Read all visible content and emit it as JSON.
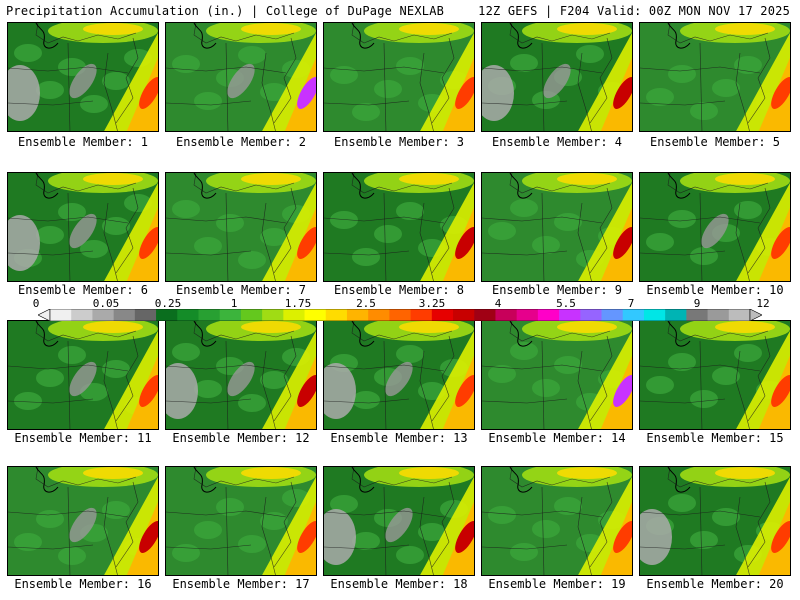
{
  "header": {
    "left": "Precipitation Accumulation (in.) | College of DuPage NEXLAB",
    "right": "12Z GEFS | F204 Valid: 00Z MON NOV 17 2025"
  },
  "caption_prefix": "Ensemble Member:",
  "members": [
    {
      "label": "Ensemble Member: 1",
      "mean_accum": 1.0,
      "west_dry": true,
      "south_dry": true,
      "max_core": 3.0
    },
    {
      "label": "Ensemble Member: 2",
      "mean_accum": 1.2,
      "west_dry": false,
      "south_dry": true,
      "max_core": 5.0
    },
    {
      "label": "Ensemble Member: 3",
      "mean_accum": 1.1,
      "west_dry": false,
      "south_dry": false,
      "max_core": 2.5
    },
    {
      "label": "Ensemble Member: 4",
      "mean_accum": 1.0,
      "west_dry": true,
      "south_dry": true,
      "max_core": 3.5
    },
    {
      "label": "Ensemble Member: 5",
      "mean_accum": 1.2,
      "west_dry": false,
      "south_dry": false,
      "max_core": 3.0
    },
    {
      "label": "Ensemble Member: 6",
      "mean_accum": 0.9,
      "west_dry": true,
      "south_dry": true,
      "max_core": 3.0
    },
    {
      "label": "Ensemble Member: 7",
      "mean_accum": 1.1,
      "west_dry": false,
      "south_dry": false,
      "max_core": 3.0
    },
    {
      "label": "Ensemble Member: 8",
      "mean_accum": 1.0,
      "west_dry": false,
      "south_dry": false,
      "max_core": 4.0
    },
    {
      "label": "Ensemble Member: 9",
      "mean_accum": 1.1,
      "west_dry": false,
      "south_dry": false,
      "max_core": 3.5
    },
    {
      "label": "Ensemble Member: 10",
      "mean_accum": 1.0,
      "west_dry": false,
      "south_dry": true,
      "max_core": 3.0
    },
    {
      "label": "Ensemble Member: 11",
      "mean_accum": 0.9,
      "west_dry": false,
      "south_dry": true,
      "max_core": 3.0
    },
    {
      "label": "Ensemble Member: 12",
      "mean_accum": 1.0,
      "west_dry": true,
      "south_dry": true,
      "max_core": 3.5
    },
    {
      "label": "Ensemble Member: 13",
      "mean_accum": 0.9,
      "west_dry": true,
      "south_dry": true,
      "max_core": 2.5
    },
    {
      "label": "Ensemble Member: 14",
      "mean_accum": 1.3,
      "west_dry": false,
      "south_dry": false,
      "max_core": 5.5
    },
    {
      "label": "Ensemble Member: 15",
      "mean_accum": 1.0,
      "west_dry": false,
      "south_dry": false,
      "max_core": 2.5
    },
    {
      "label": "Ensemble Member: 16",
      "mean_accum": 1.2,
      "west_dry": false,
      "south_dry": true,
      "max_core": 4.0
    },
    {
      "label": "Ensemble Member: 17",
      "mean_accum": 1.1,
      "west_dry": false,
      "south_dry": false,
      "max_core": 3.0
    },
    {
      "label": "Ensemble Member: 18",
      "mean_accum": 1.0,
      "west_dry": true,
      "south_dry": true,
      "max_core": 3.5
    },
    {
      "label": "Ensemble Member: 19",
      "mean_accum": 1.2,
      "west_dry": false,
      "south_dry": false,
      "max_core": 3.0
    },
    {
      "label": "Ensemble Member: 20",
      "mean_accum": 1.0,
      "west_dry": true,
      "south_dry": false,
      "max_core": 3.0
    }
  ],
  "colorbar": {
    "tick_labels": [
      "0",
      "0.05",
      "0.25",
      "1",
      "1.75",
      "2.5",
      "3.25",
      "4",
      "5.5",
      "7",
      "9",
      "12"
    ],
    "colors": [
      "#f0f0f0",
      "#cccccc",
      "#aaaaaa",
      "#888888",
      "#666666",
      "#0a6e1e",
      "#148c28",
      "#28a032",
      "#3cb43c",
      "#64c81e",
      "#a0dc14",
      "#dcf000",
      "#ffff00",
      "#ffdc00",
      "#ffb400",
      "#ff8c00",
      "#ff6400",
      "#ff3c00",
      "#e60000",
      "#c80000",
      "#a00014",
      "#c8005a",
      "#e6008c",
      "#ff00c8",
      "#c832ff",
      "#9664ff",
      "#6496ff",
      "#32c8ff",
      "#00e6e6",
      "#00b4b4",
      "#787878",
      "#9a9a9a",
      "#bcbcbc"
    ]
  }
}
